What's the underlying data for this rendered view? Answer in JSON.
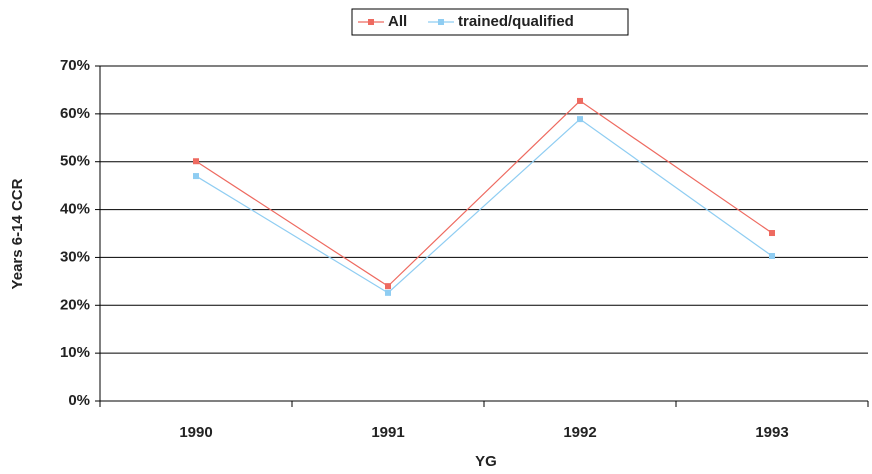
{
  "chart_data": {
    "type": "line",
    "x_label": "YG",
    "y_label": "Years 6-14 CCR",
    "categories": [
      "1990",
      "1991",
      "1992",
      "1993"
    ],
    "series": [
      {
        "name": "All",
        "color": "#ee6a60",
        "values": [
          50.1,
          24.0,
          62.7,
          35.1
        ]
      },
      {
        "name": "trained/qualified",
        "color": "#8fcdf2",
        "values": [
          47.0,
          22.6,
          58.9,
          30.3
        ]
      }
    ],
    "ylim": [
      0,
      70
    ],
    "yticks": [
      {
        "value": 0,
        "label": "0%"
      },
      {
        "value": 10,
        "label": "10%"
      },
      {
        "value": 20,
        "label": "20%"
      },
      {
        "value": 30,
        "label": "30%"
      },
      {
        "value": 40,
        "label": "40%"
      },
      {
        "value": 50,
        "label": "50%"
      },
      {
        "value": 60,
        "label": "60%"
      },
      {
        "value": 70,
        "label": "70%"
      }
    ],
    "grid": true
  }
}
